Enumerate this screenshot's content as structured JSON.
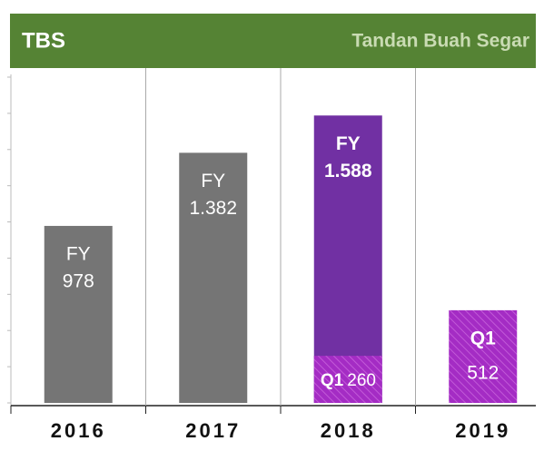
{
  "chart_data": {
    "type": "bar",
    "title": "TBS",
    "subtitle": "Tandan Buah Segar",
    "categories": [
      "2016",
      "2017",
      "2018",
      "2019"
    ],
    "series": [
      {
        "name": "FY",
        "colors": [
          "#757575",
          "#757575",
          "#7130a3",
          null
        ],
        "values": [
          978,
          1382,
          1588,
          null
        ],
        "value_labels": [
          "978",
          "1.382",
          "1.588",
          null
        ]
      },
      {
        "name": "Q1",
        "color": "#a42cc4",
        "values": [
          null,
          null,
          260,
          512
        ]
      }
    ],
    "ylim": [
      0,
      1800
    ],
    "yticks": [
      0,
      200,
      400,
      600,
      800,
      1000,
      1200,
      1400,
      1600,
      1800
    ]
  }
}
